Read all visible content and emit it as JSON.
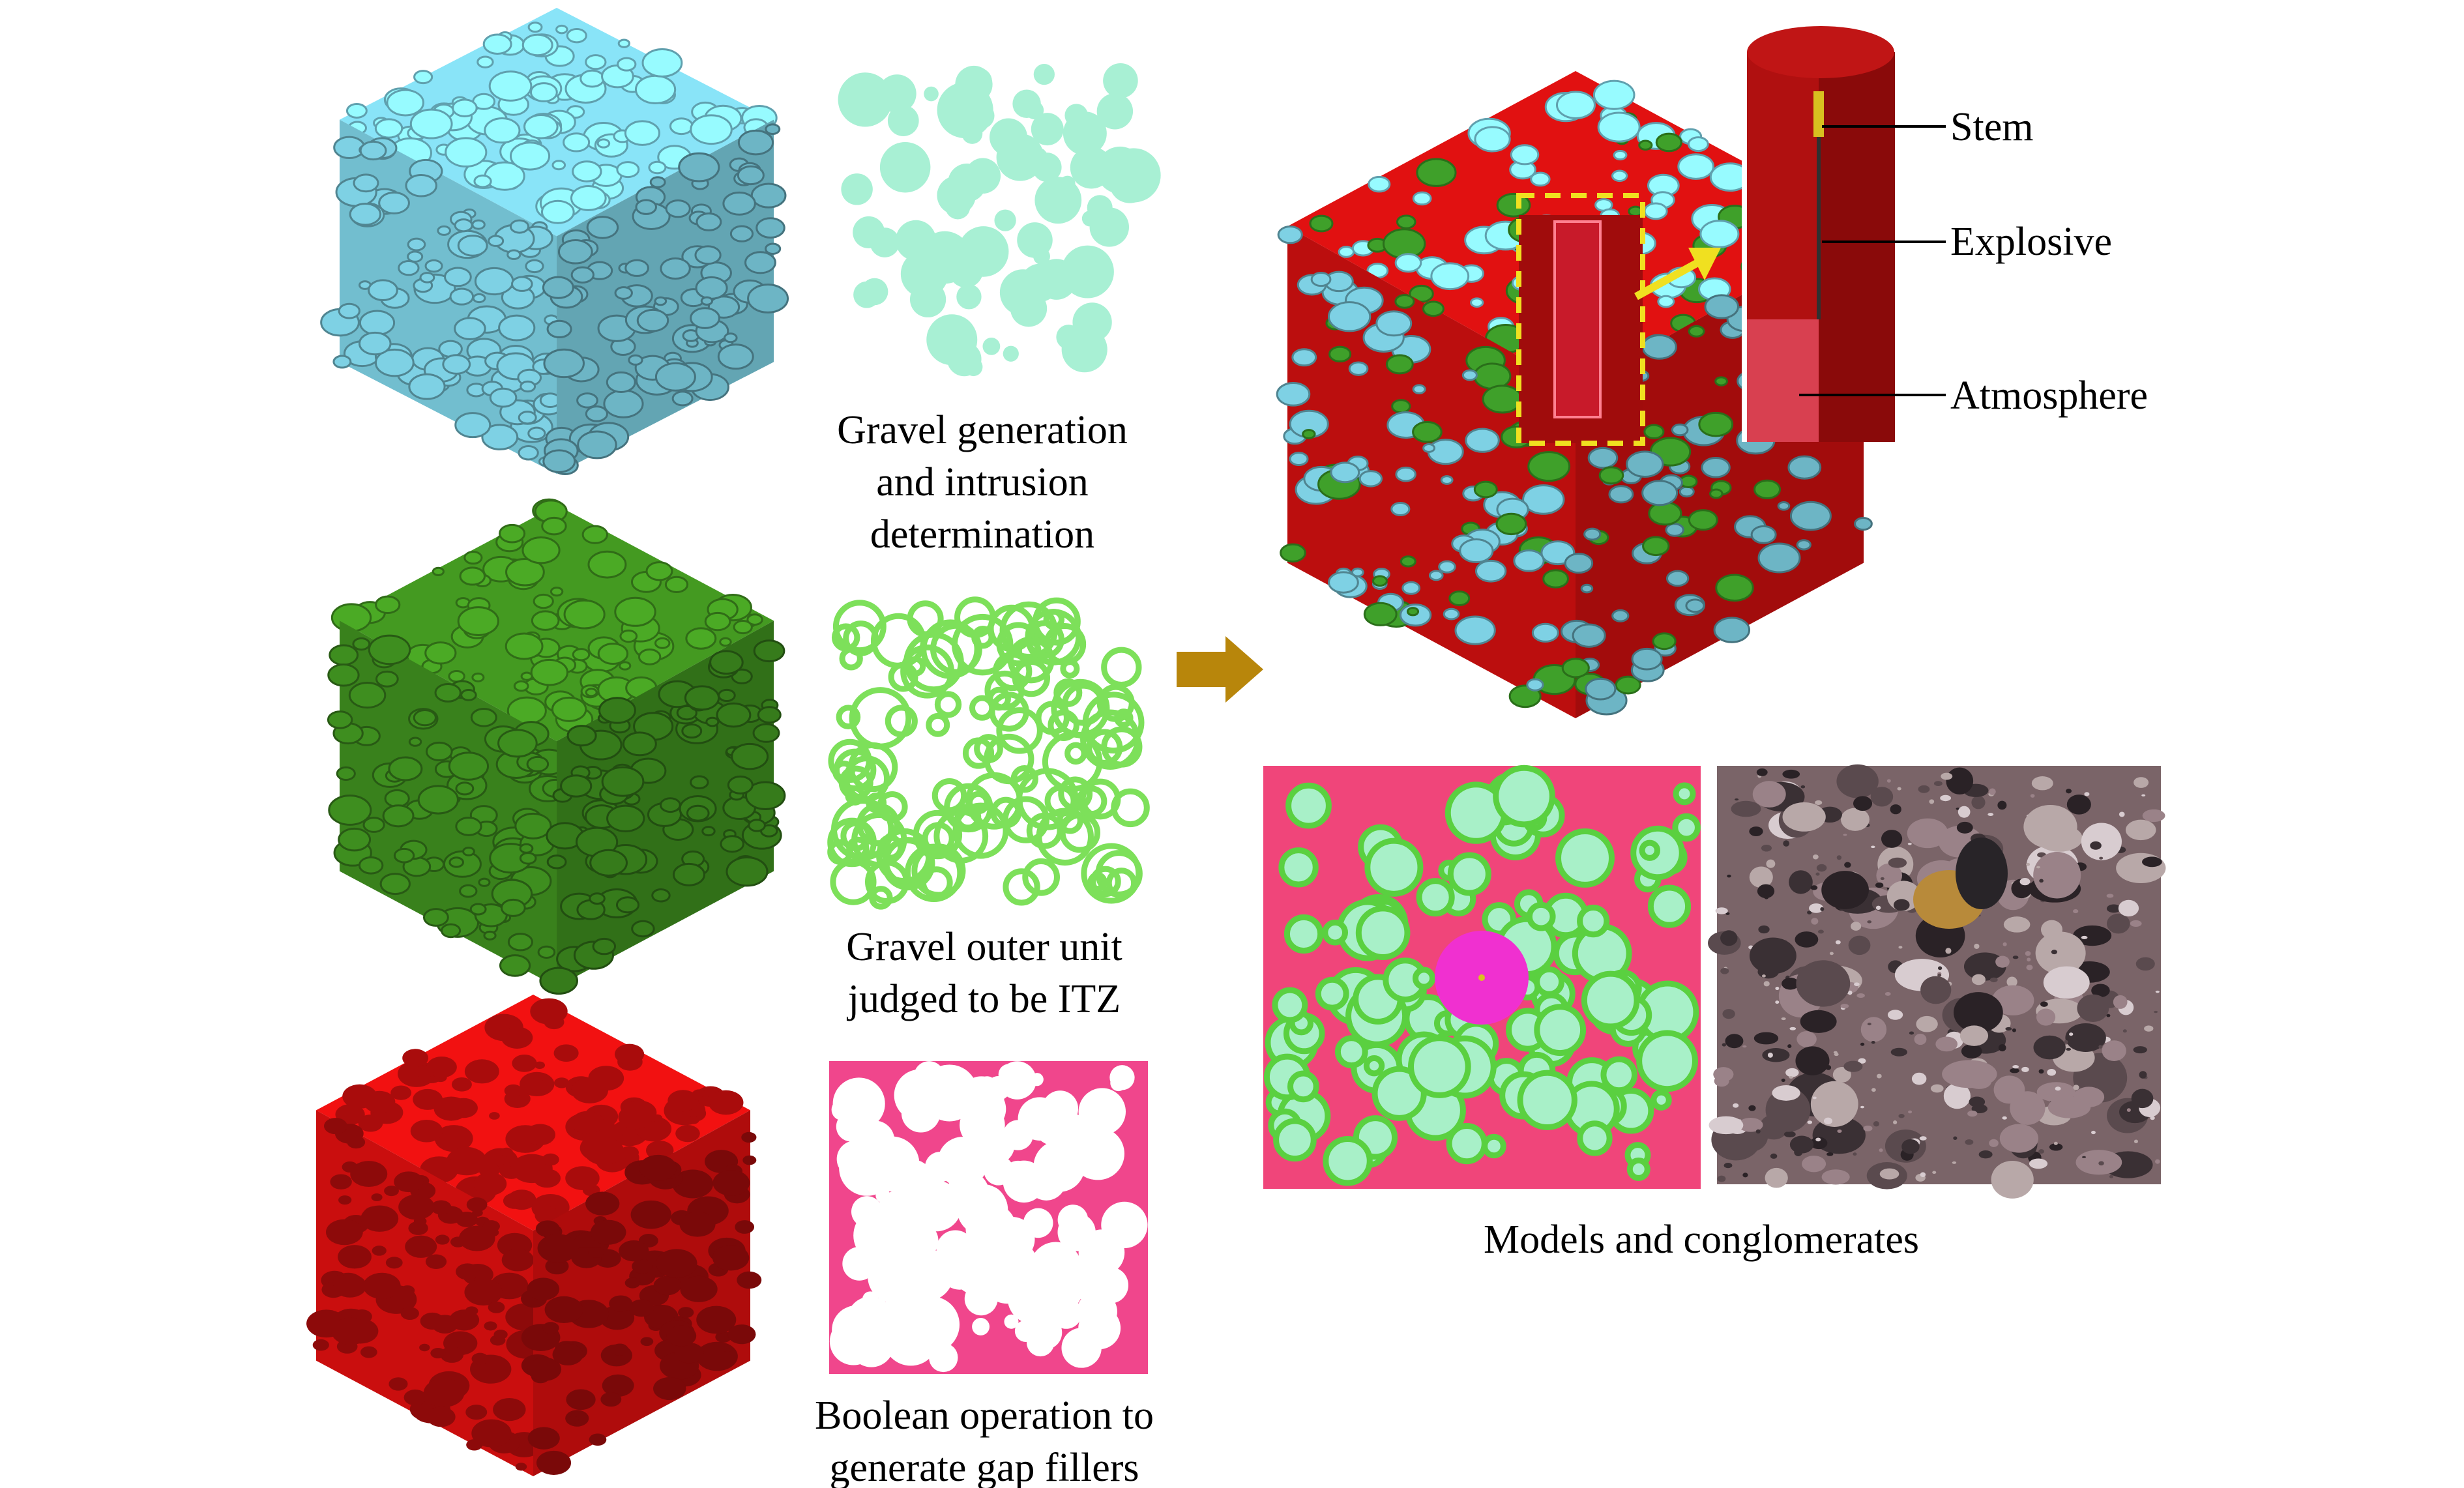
{
  "captions": {
    "gravel": [
      "Gravel generation",
      "and intrusion",
      "determination"
    ],
    "itz": [
      "Gravel outer unit",
      "judged to be ITZ"
    ],
    "boolean": [
      "Boolean operation to",
      "generate gap fillers"
    ],
    "models": "Models and conglomerates"
  },
  "labels": {
    "stem": "Stem",
    "explosive": "Explosive",
    "atmosphere": "Atmosphere"
  },
  "colors": {
    "gravel": "#7fd3e6",
    "itz": "#3f8f1f",
    "filler": "#e01010",
    "slice_gravel": "#a8f0d4",
    "slice_itz": "#7de05a",
    "slice_filler": "#f0468c",
    "arrow": "#b8860b",
    "highlight": "#f0e020"
  }
}
